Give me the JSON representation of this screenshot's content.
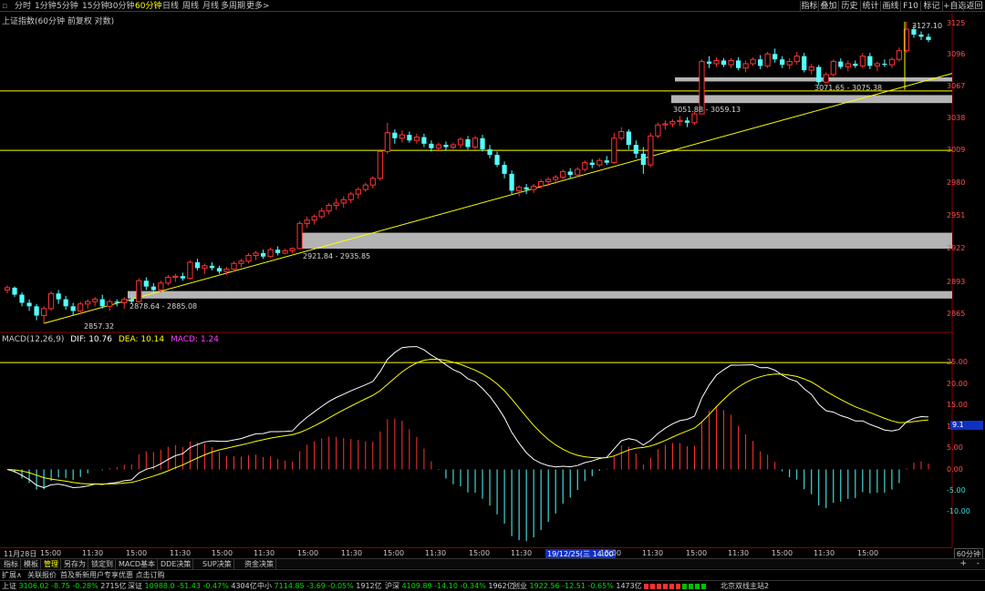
{
  "topbar": {
    "periods": [
      "分时",
      "1分钟",
      "5分钟",
      "15分钟",
      "30分钟",
      "60分钟",
      "日线",
      "周线",
      "月线",
      "多周期",
      "更多>"
    ],
    "active_period": "60分钟",
    "right_buttons": [
      "指标",
      "叠加",
      "历史",
      "统计",
      "画线",
      "F10",
      "标记",
      "+自选",
      "返回"
    ]
  },
  "chart_title": "上证指数(60分钟 前复权 对数)",
  "chart_data": [
    {
      "type": "candlestick",
      "title": "上证指数(60分钟 前复权 对数)",
      "y_ticks": [
        3125,
        3096,
        3067,
        3038,
        3009,
        2980,
        2951,
        2922,
        2893,
        2865
      ],
      "ylim": [
        2852,
        3132
      ],
      "x_tick_labels": [
        "11月28日",
        "15:00",
        "11:30",
        "15:00",
        "11:30",
        "15:00",
        "11:30",
        "15:00",
        "11:30",
        "15:00",
        "11:30",
        "15:00",
        "11:30",
        "19/12/25(三 14:00",
        "15:00",
        "11:30",
        "15:00",
        "11:30",
        "15:00",
        "11:30",
        "15:00"
      ],
      "candles": [
        {
          "o": 2886,
          "h": 2890,
          "l": 2883,
          "c": 2888
        },
        {
          "o": 2888,
          "h": 2889,
          "l": 2880,
          "c": 2882
        },
        {
          "o": 2882,
          "h": 2884,
          "l": 2872,
          "c": 2875
        },
        {
          "o": 2875,
          "h": 2878,
          "l": 2868,
          "c": 2872
        },
        {
          "o": 2872,
          "h": 2874,
          "l": 2860,
          "c": 2864
        },
        {
          "o": 2864,
          "h": 2872,
          "l": 2857,
          "c": 2870
        },
        {
          "o": 2870,
          "h": 2885,
          "l": 2868,
          "c": 2883
        },
        {
          "o": 2883,
          "h": 2886,
          "l": 2874,
          "c": 2878
        },
        {
          "o": 2878,
          "h": 2881,
          "l": 2869,
          "c": 2872
        },
        {
          "o": 2872,
          "h": 2875,
          "l": 2864,
          "c": 2868
        },
        {
          "o": 2868,
          "h": 2876,
          "l": 2865,
          "c": 2874
        },
        {
          "o": 2874,
          "h": 2878,
          "l": 2870,
          "c": 2876
        },
        {
          "o": 2876,
          "h": 2880,
          "l": 2872,
          "c": 2878
        },
        {
          "o": 2878,
          "h": 2882,
          "l": 2870,
          "c": 2872
        },
        {
          "o": 2872,
          "h": 2878,
          "l": 2868,
          "c": 2876
        },
        {
          "o": 2876,
          "h": 2878,
          "l": 2872,
          "c": 2875
        },
        {
          "o": 2875,
          "h": 2880,
          "l": 2870,
          "c": 2878
        },
        {
          "o": 2878,
          "h": 2882,
          "l": 2874,
          "c": 2876
        },
        {
          "o": 2876,
          "h": 2896,
          "l": 2875,
          "c": 2894
        },
        {
          "o": 2894,
          "h": 2897,
          "l": 2886,
          "c": 2889
        },
        {
          "o": 2889,
          "h": 2892,
          "l": 2882,
          "c": 2886
        },
        {
          "o": 2886,
          "h": 2894,
          "l": 2884,
          "c": 2892
        },
        {
          "o": 2892,
          "h": 2899,
          "l": 2890,
          "c": 2897
        },
        {
          "o": 2897,
          "h": 2900,
          "l": 2893,
          "c": 2898
        },
        {
          "o": 2898,
          "h": 2901,
          "l": 2894,
          "c": 2896
        },
        {
          "o": 2896,
          "h": 2912,
          "l": 2895,
          "c": 2910
        },
        {
          "o": 2910,
          "h": 2913,
          "l": 2903,
          "c": 2905
        },
        {
          "o": 2905,
          "h": 2909,
          "l": 2900,
          "c": 2907
        },
        {
          "o": 2907,
          "h": 2910,
          "l": 2903,
          "c": 2905
        },
        {
          "o": 2905,
          "h": 2907,
          "l": 2900,
          "c": 2902
        },
        {
          "o": 2902,
          "h": 2906,
          "l": 2899,
          "c": 2904
        },
        {
          "o": 2904,
          "h": 2911,
          "l": 2902,
          "c": 2909
        },
        {
          "o": 2909,
          "h": 2913,
          "l": 2906,
          "c": 2911
        },
        {
          "o": 2911,
          "h": 2918,
          "l": 2909,
          "c": 2916
        },
        {
          "o": 2916,
          "h": 2920,
          "l": 2912,
          "c": 2918
        },
        {
          "o": 2918,
          "h": 2921,
          "l": 2913,
          "c": 2915
        },
        {
          "o": 2915,
          "h": 2923,
          "l": 2914,
          "c": 2921
        },
        {
          "o": 2921,
          "h": 2924,
          "l": 2916,
          "c": 2918
        },
        {
          "o": 2918,
          "h": 2922,
          "l": 2917,
          "c": 2920
        },
        {
          "o": 2920,
          "h": 2923,
          "l": 2918,
          "c": 2922
        },
        {
          "o": 2922,
          "h": 2946,
          "l": 2921,
          "c": 2944
        },
        {
          "o": 2944,
          "h": 2950,
          "l": 2940,
          "c": 2947
        },
        {
          "o": 2947,
          "h": 2952,
          "l": 2943,
          "c": 2950
        },
        {
          "o": 2950,
          "h": 2958,
          "l": 2948,
          "c": 2955
        },
        {
          "o": 2955,
          "h": 2962,
          "l": 2952,
          "c": 2960
        },
        {
          "o": 2960,
          "h": 2966,
          "l": 2956,
          "c": 2962
        },
        {
          "o": 2962,
          "h": 2968,
          "l": 2958,
          "c": 2965
        },
        {
          "o": 2965,
          "h": 2972,
          "l": 2962,
          "c": 2970
        },
        {
          "o": 2970,
          "h": 2976,
          "l": 2966,
          "c": 2974
        },
        {
          "o": 2974,
          "h": 2980,
          "l": 2972,
          "c": 2978
        },
        {
          "o": 2978,
          "h": 2986,
          "l": 2975,
          "c": 2984
        },
        {
          "o": 2984,
          "h": 3010,
          "l": 2982,
          "c": 3008
        },
        {
          "o": 3008,
          "h": 3034,
          "l": 3006,
          "c": 3025
        },
        {
          "o": 3025,
          "h": 3028,
          "l": 3015,
          "c": 3020
        },
        {
          "o": 3020,
          "h": 3027,
          "l": 3016,
          "c": 3023
        },
        {
          "o": 3023,
          "h": 3026,
          "l": 3016,
          "c": 3018
        },
        {
          "o": 3018,
          "h": 3024,
          "l": 3015,
          "c": 3021
        },
        {
          "o": 3021,
          "h": 3024,
          "l": 3012,
          "c": 3015
        },
        {
          "o": 3015,
          "h": 3018,
          "l": 3008,
          "c": 3011
        },
        {
          "o": 3011,
          "h": 3016,
          "l": 3008,
          "c": 3014
        },
        {
          "o": 3014,
          "h": 3017,
          "l": 3009,
          "c": 3012
        },
        {
          "o": 3012,
          "h": 3016,
          "l": 3010,
          "c": 3014
        },
        {
          "o": 3014,
          "h": 3021,
          "l": 3011,
          "c": 3019
        },
        {
          "o": 3019,
          "h": 3022,
          "l": 3010,
          "c": 3012
        },
        {
          "o": 3012,
          "h": 3022,
          "l": 3010,
          "c": 3020
        },
        {
          "o": 3020,
          "h": 3023,
          "l": 3008,
          "c": 3010
        },
        {
          "o": 3010,
          "h": 3014,
          "l": 3002,
          "c": 3005
        },
        {
          "o": 3005,
          "h": 3008,
          "l": 2994,
          "c": 2996
        },
        {
          "o": 2996,
          "h": 2999,
          "l": 2984,
          "c": 2988
        },
        {
          "o": 2988,
          "h": 2991,
          "l": 2970,
          "c": 2973
        },
        {
          "o": 2973,
          "h": 2978,
          "l": 2968,
          "c": 2976
        },
        {
          "o": 2976,
          "h": 2979,
          "l": 2970,
          "c": 2974
        },
        {
          "o": 2974,
          "h": 2979,
          "l": 2971,
          "c": 2977
        },
        {
          "o": 2977,
          "h": 2983,
          "l": 2975,
          "c": 2981
        },
        {
          "o": 2981,
          "h": 2985,
          "l": 2977,
          "c": 2983
        },
        {
          "o": 2983,
          "h": 2987,
          "l": 2979,
          "c": 2985
        },
        {
          "o": 2985,
          "h": 2992,
          "l": 2983,
          "c": 2990
        },
        {
          "o": 2990,
          "h": 2993,
          "l": 2984,
          "c": 2987
        },
        {
          "o": 2987,
          "h": 2994,
          "l": 2985,
          "c": 2992
        },
        {
          "o": 2992,
          "h": 3000,
          "l": 2990,
          "c": 2998
        },
        {
          "o": 2998,
          "h": 3001,
          "l": 2993,
          "c": 2996
        },
        {
          "o": 2996,
          "h": 3002,
          "l": 2994,
          "c": 3000
        },
        {
          "o": 3000,
          "h": 3004,
          "l": 2996,
          "c": 2998
        },
        {
          "o": 2998,
          "h": 3025,
          "l": 2997,
          "c": 3020
        },
        {
          "o": 3020,
          "h": 3030,
          "l": 3018,
          "c": 3026
        },
        {
          "o": 3026,
          "h": 3028,
          "l": 3010,
          "c": 3014
        },
        {
          "o": 3014,
          "h": 3018,
          "l": 3002,
          "c": 3006
        },
        {
          "o": 3006,
          "h": 3012,
          "l": 2988,
          "c": 2996
        },
        {
          "o": 2996,
          "h": 3025,
          "l": 2994,
          "c": 3022
        },
        {
          "o": 3022,
          "h": 3034,
          "l": 3020,
          "c": 3032
        },
        {
          "o": 3032,
          "h": 3036,
          "l": 3028,
          "c": 3033
        },
        {
          "o": 3033,
          "h": 3037,
          "l": 3030,
          "c": 3035
        },
        {
          "o": 3035,
          "h": 3040,
          "l": 3031,
          "c": 3036
        },
        {
          "o": 3036,
          "h": 3039,
          "l": 3030,
          "c": 3034
        },
        {
          "o": 3034,
          "h": 3044,
          "l": 3032,
          "c": 3042
        },
        {
          "o": 3042,
          "h": 3092,
          "l": 3042,
          "c": 3090
        },
        {
          "o": 3090,
          "h": 3095,
          "l": 3084,
          "c": 3088
        },
        {
          "o": 3088,
          "h": 3094,
          "l": 3085,
          "c": 3091
        },
        {
          "o": 3091,
          "h": 3093,
          "l": 3085,
          "c": 3087
        },
        {
          "o": 3087,
          "h": 3093,
          "l": 3084,
          "c": 3091
        },
        {
          "o": 3091,
          "h": 3094,
          "l": 3082,
          "c": 3084
        },
        {
          "o": 3084,
          "h": 3091,
          "l": 3080,
          "c": 3088
        },
        {
          "o": 3088,
          "h": 3094,
          "l": 3086,
          "c": 3092
        },
        {
          "o": 3092,
          "h": 3096,
          "l": 3083,
          "c": 3086
        },
        {
          "o": 3086,
          "h": 3099,
          "l": 3084,
          "c": 3097
        },
        {
          "o": 3097,
          "h": 3102,
          "l": 3089,
          "c": 3092
        },
        {
          "o": 3092,
          "h": 3095,
          "l": 3084,
          "c": 3087
        },
        {
          "o": 3087,
          "h": 3093,
          "l": 3083,
          "c": 3090
        },
        {
          "o": 3090,
          "h": 3099,
          "l": 3087,
          "c": 3095
        },
        {
          "o": 3095,
          "h": 3098,
          "l": 3080,
          "c": 3082
        },
        {
          "o": 3082,
          "h": 3088,
          "l": 3078,
          "c": 3085
        },
        {
          "o": 3085,
          "h": 3087,
          "l": 3068,
          "c": 3071
        },
        {
          "o": 3071,
          "h": 3080,
          "l": 3070,
          "c": 3078
        },
        {
          "o": 3078,
          "h": 3092,
          "l": 3076,
          "c": 3090
        },
        {
          "o": 3090,
          "h": 3093,
          "l": 3083,
          "c": 3085
        },
        {
          "o": 3085,
          "h": 3091,
          "l": 3081,
          "c": 3088
        },
        {
          "o": 3088,
          "h": 3091,
          "l": 3084,
          "c": 3086
        },
        {
          "o": 3086,
          "h": 3098,
          "l": 3084,
          "c": 3095
        },
        {
          "o": 3095,
          "h": 3098,
          "l": 3083,
          "c": 3086
        },
        {
          "o": 3086,
          "h": 3090,
          "l": 3081,
          "c": 3088
        },
        {
          "o": 3088,
          "h": 3092,
          "l": 3085,
          "c": 3087
        },
        {
          "o": 3087,
          "h": 3094,
          "l": 3084,
          "c": 3092
        },
        {
          "o": 3092,
          "h": 3103,
          "l": 3090,
          "c": 3100
        },
        {
          "o": 3100,
          "h": 3127,
          "l": 3098,
          "c": 3120
        },
        {
          "o": 3120,
          "h": 3124,
          "l": 3112,
          "c": 3115
        },
        {
          "o": 3115,
          "h": 3118,
          "l": 3110,
          "c": 3113
        },
        {
          "o": 3113,
          "h": 3116,
          "l": 3108,
          "c": 3110
        }
      ],
      "annotations": [
        {
          "text": "3127.10",
          "price": 3127.1
        },
        {
          "text": "3071.65 - 3075.38",
          "price": 3073
        },
        {
          "text": "3051.88 - 3059.13",
          "price": 3055
        },
        {
          "text": "2921.84 - 2935.85",
          "price": 2928
        },
        {
          "text": "2878.64 - 2885.08",
          "price": 2882
        },
        {
          "text": "2857.32",
          "price": 2857.32
        }
      ],
      "zones": [
        {
          "from": 3071.65,
          "to": 3075.38
        },
        {
          "from": 3051.88,
          "to": 3059.13
        },
        {
          "from": 2921.84,
          "to": 2935.85
        },
        {
          "from": 2878.64,
          "to": 2885.08
        }
      ],
      "horizontal_lines": [
        3063,
        3009
      ],
      "trendline": {
        "from_index": 5,
        "from_price": 2857.32,
        "to_index": 131,
        "to_price": 3074
      },
      "colors": {
        "up": "#ff3232",
        "down": "#54ffff",
        "line": "#ffff00",
        "zone": "#b4b4b4"
      }
    },
    {
      "type": "macd",
      "title": "MACD(12,26,9)",
      "params": [
        12,
        26,
        9
      ],
      "dif": 10.76,
      "dea": 10.14,
      "macd": 1.24,
      "y_ticks": [
        25.0,
        20.0,
        15.0,
        10.0,
        5.0,
        0.0,
        -5.0,
        -10.0
      ],
      "ylim": [
        -18,
        31
      ],
      "horizontal_lines": [
        25.0
      ],
      "colors": {
        "dif": "#ffffff",
        "dea": "#ffff00",
        "pos": "#ff3232",
        "neg": "#54ffff"
      }
    }
  ],
  "macd_labels": {
    "name": "MACD(12,26,9)",
    "dif": "DIF: 10.76",
    "dea": "DEA: 10.14",
    "macd": "MACD: 1.24",
    "marker": "9.1"
  },
  "bottom_tabs": [
    "指标",
    "模板",
    "管理",
    "另存为",
    "锁定到",
    "MACD基本",
    "DDE决策",
    "SUP决策",
    "资金决策"
  ],
  "active_bottom_tab": "管理",
  "news": [
    "扩展∧",
    "关联报价",
    "首及新新用户专享优惠 点击订购"
  ],
  "period_box": "60分钟",
  "tickers": [
    {
      "name": "上证",
      "price": "3106.02",
      "chg": "-8.75",
      "pct": "-0.28%",
      "vol": "2715亿"
    },
    {
      "name": "深证",
      "price": "10988.0",
      "chg": "-51.43",
      "pct": "-0.47%",
      "vol": "4304亿"
    },
    {
      "name": "中小",
      "price": "7114.85",
      "chg": "-3.69",
      "pct": "-0.05%",
      "vol": "1912亿"
    },
    {
      "name": "沪深",
      "price": "4109.89",
      "chg": "-14.10",
      "pct": "-0.34%",
      "vol": "1962亿"
    },
    {
      "name": "创业",
      "price": "1922.56",
      "chg": "-12.51",
      "pct": "-0.65%",
      "vol": "1473亿"
    }
  ],
  "station": "北京双线主站2"
}
